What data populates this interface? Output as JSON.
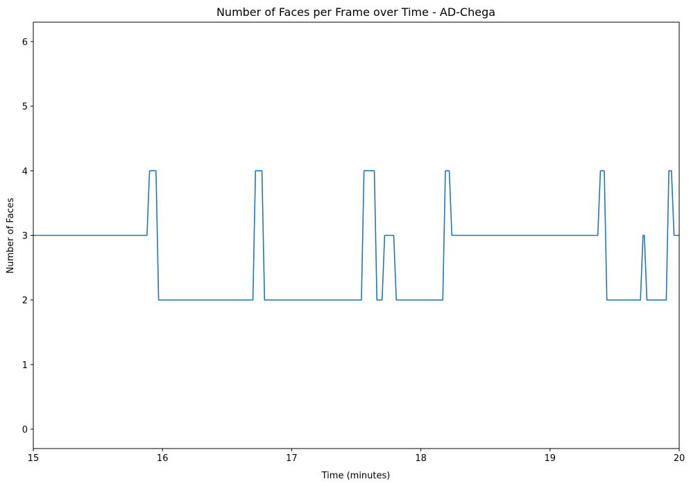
{
  "chart_data": {
    "type": "line",
    "title": "Number of Faces per Frame over Time - AD-Chega",
    "xlabel": "Time (minutes)",
    "ylabel": "Number of Faces",
    "xlim": [
      15,
      20
    ],
    "ylim": [
      -0.3,
      6.3
    ],
    "xticks": [
      15,
      16,
      17,
      18,
      19,
      20
    ],
    "yticks": [
      0,
      1,
      2,
      3,
      4,
      5,
      6
    ],
    "grid": false,
    "color": "#1f77b4",
    "series": [
      {
        "x": [
          15.0,
          15.88,
          15.9,
          15.95,
          15.97,
          16.7,
          16.72,
          16.77,
          16.79,
          17.54,
          17.56,
          17.64,
          17.66,
          17.7,
          17.72,
          17.79,
          17.81,
          18.17,
          18.19,
          18.22,
          18.24,
          19.37,
          19.39,
          19.42,
          19.44,
          19.7,
          19.72,
          19.73,
          19.75,
          19.9,
          19.92,
          19.94,
          19.96,
          20.0
        ],
        "y": [
          3,
          3,
          4,
          4,
          2,
          2,
          4,
          4,
          2,
          2,
          4,
          4,
          2,
          2,
          3,
          3,
          2,
          2,
          4,
          4,
          3,
          3,
          4,
          4,
          2,
          2,
          3,
          3,
          2,
          2,
          4,
          4,
          3,
          3
        ]
      }
    ]
  }
}
